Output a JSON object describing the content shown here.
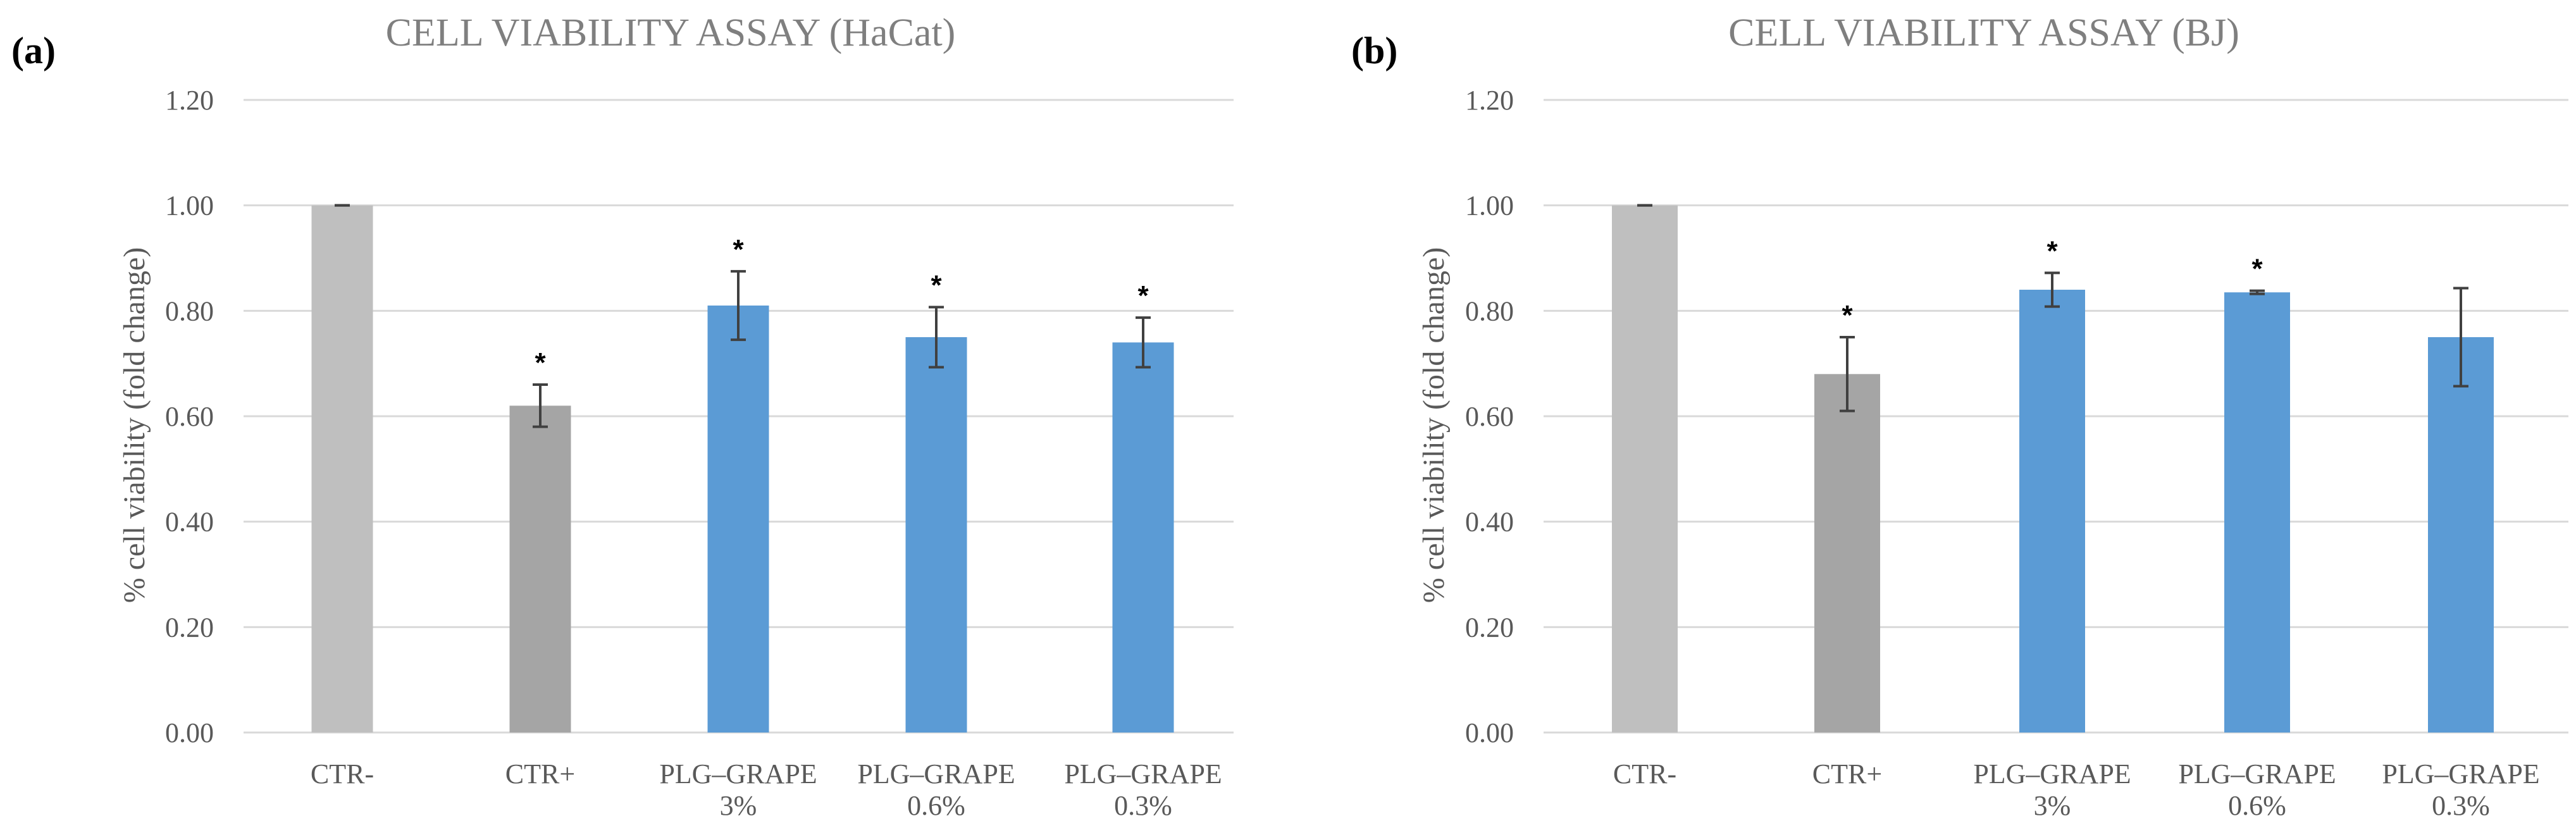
{
  "colors": {
    "ctr_neg": "#bfbfbf",
    "ctr_pos": "#a5a5a5",
    "treatment": "#5b9bd5",
    "grid": "#d9d9d9",
    "error_bar": "#404040"
  },
  "chart_data": [
    {
      "type": "bar",
      "panel": "(a)",
      "title": "CELL VIABILITY ASSAY (HaCat)",
      "xlabel": "",
      "ylabel": "% cell viability (fold change)",
      "ylim": [
        0,
        1.2
      ],
      "yticks": [
        "0.00",
        "0.20",
        "0.40",
        "0.60",
        "0.80",
        "1.00",
        "1.20"
      ],
      "grid": true,
      "categories": [
        [
          "CTR-"
        ],
        [
          "CTR+"
        ],
        [
          "PLG–GRAPE",
          "3%"
        ],
        [
          "PLG–GRAPE",
          "0.6%"
        ],
        [
          "PLG–GRAPE",
          "0.3%"
        ]
      ],
      "values": [
        1.0,
        0.62,
        0.81,
        0.75,
        0.74
      ],
      "errors": [
        0.0,
        0.04,
        0.065,
        0.057,
        0.047
      ],
      "significance": [
        "",
        "*",
        "*",
        "*",
        "*"
      ],
      "bar_colors": [
        "ctr_neg",
        "ctr_pos",
        "treatment",
        "treatment",
        "treatment"
      ]
    },
    {
      "type": "bar",
      "panel": "(b)",
      "title": "CELL VIABILITY ASSAY (BJ)",
      "xlabel": "",
      "ylabel": "% cell viability (fold change)",
      "ylim": [
        0,
        1.2
      ],
      "yticks": [
        "0.00",
        "0.20",
        "0.40",
        "0.60",
        "0.80",
        "1.00",
        "1.20"
      ],
      "grid": true,
      "categories": [
        [
          "CTR-"
        ],
        [
          "CTR+"
        ],
        [
          "PLG–GRAPE",
          "3%"
        ],
        [
          "PLG–GRAPE",
          "0.6%"
        ],
        [
          "PLG–GRAPE",
          "0.3%"
        ]
      ],
      "values": [
        1.0,
        0.68,
        0.84,
        0.835,
        0.75
      ],
      "errors": [
        0.0,
        0.07,
        0.032,
        0.003,
        0.093
      ],
      "significance": [
        "",
        "*",
        "*",
        "*",
        ""
      ],
      "bar_colors": [
        "ctr_neg",
        "ctr_pos",
        "treatment",
        "treatment",
        "treatment"
      ]
    }
  ]
}
